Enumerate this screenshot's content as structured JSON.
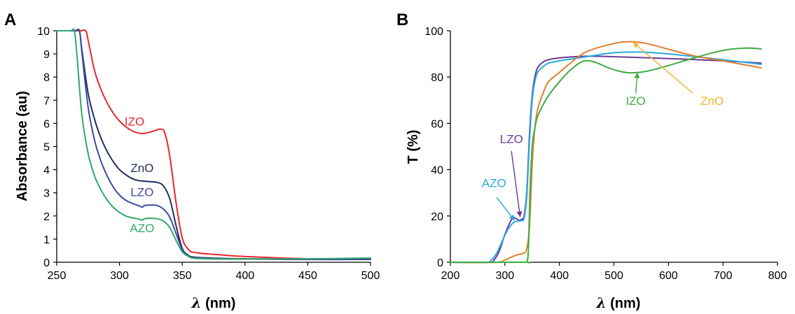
{
  "chart_data": [
    {
      "panel": "A",
      "type": "line",
      "title": "",
      "xlabel_symbol": "λ",
      "xlabel_unit": " (nm)",
      "ylabel": "Absorbance (au)",
      "xlim": [
        250,
        500
      ],
      "ylim": [
        0,
        10
      ],
      "xticks": [
        250,
        300,
        350,
        400,
        450,
        500
      ],
      "yticks": [
        0,
        1,
        2,
        3,
        4,
        5,
        6,
        7,
        8,
        9,
        10
      ],
      "grid": false,
      "legend": "none",
      "series": [
        {
          "name": "IZO",
          "color": "#e8262c",
          "x": [
            250,
            268,
            273,
            275,
            280,
            285,
            290,
            295,
            300,
            305,
            310,
            315,
            320,
            325,
            330,
            333,
            336,
            340,
            345,
            350,
            355,
            360,
            380,
            400,
            450,
            500
          ],
          "y": [
            10,
            10,
            10,
            9.6,
            8.3,
            7.5,
            6.9,
            6.45,
            6.1,
            5.85,
            5.68,
            5.58,
            5.57,
            5.63,
            5.72,
            5.75,
            5.6,
            4.6,
            2.6,
            1.05,
            0.55,
            0.42,
            0.32,
            0.25,
            0.15,
            0.12
          ]
        },
        {
          "name": "ZnO",
          "color": "#1f2d5a",
          "x": [
            250,
            264,
            268,
            270,
            275,
            280,
            285,
            290,
            295,
            300,
            305,
            310,
            315,
            320,
            325,
            330,
            335,
            340,
            345,
            350,
            355,
            360,
            380,
            400,
            450,
            500
          ],
          "y": [
            10,
            10,
            10,
            9.2,
            7.3,
            6.2,
            5.4,
            4.8,
            4.35,
            4.0,
            3.78,
            3.62,
            3.53,
            3.5,
            3.48,
            3.45,
            3.3,
            2.75,
            1.6,
            0.6,
            0.3,
            0.22,
            0.17,
            0.15,
            0.12,
            0.12
          ]
        },
        {
          "name": "LZO",
          "color": "#3b4aa0",
          "x": [
            250,
            264,
            268,
            270,
            275,
            280,
            285,
            290,
            295,
            300,
            305,
            310,
            315,
            318,
            320,
            325,
            330,
            335,
            340,
            345,
            350,
            355,
            360,
            380,
            400,
            450,
            500
          ],
          "y": [
            10,
            10,
            10,
            9.1,
            6.7,
            5.3,
            4.4,
            3.75,
            3.25,
            2.9,
            2.68,
            2.55,
            2.45,
            2.38,
            2.45,
            2.47,
            2.45,
            2.3,
            1.95,
            1.25,
            0.55,
            0.28,
            0.2,
            0.15,
            0.14,
            0.12,
            0.12
          ]
        },
        {
          "name": "AZO",
          "color": "#2fa86a",
          "x": [
            250,
            261,
            264,
            266,
            270,
            275,
            280,
            285,
            290,
            295,
            300,
            305,
            310,
            315,
            318,
            320,
            325,
            330,
            335,
            340,
            345,
            350,
            355,
            360,
            380,
            400,
            450,
            500
          ],
          "y": [
            10,
            10,
            10,
            9.0,
            6.4,
            4.7,
            3.75,
            3.15,
            2.7,
            2.38,
            2.15,
            2.0,
            1.92,
            1.87,
            1.82,
            1.88,
            1.9,
            1.88,
            1.78,
            1.5,
            0.95,
            0.45,
            0.25,
            0.17,
            0.14,
            0.14,
            0.15,
            0.18
          ]
        }
      ],
      "annotations": [
        {
          "text": "IZO",
          "color": "#e8262c",
          "x": 312,
          "y": 5.9
        },
        {
          "text": "ZnO",
          "color": "#1f2d5a",
          "x": 318,
          "y": 3.9
        },
        {
          "text": "LZO",
          "color": "#3b4aa0",
          "x": 318,
          "y": 2.85
        },
        {
          "text": "AZO",
          "color": "#2fa86a",
          "x": 318,
          "y": 1.3
        }
      ]
    },
    {
      "panel": "B",
      "type": "line",
      "title": "",
      "xlabel_symbol": "λ",
      "xlabel_unit": " (nm)",
      "ylabel": "T (%)",
      "xlim": [
        200,
        800
      ],
      "ylim": [
        0,
        100
      ],
      "xticks": [
        200,
        300,
        400,
        500,
        600,
        700,
        800
      ],
      "yticks": [
        0,
        20,
        40,
        60,
        80,
        100
      ],
      "grid": false,
      "legend": "none",
      "series": [
        {
          "name": "LZO",
          "color": "#6b3a94",
          "x": [
            200,
            270,
            280,
            290,
            300,
            310,
            315,
            320,
            325,
            330,
            335,
            340,
            345,
            350,
            355,
            360,
            370,
            380,
            400,
            450,
            500,
            600,
            700,
            770
          ],
          "y": [
            0,
            0,
            1,
            5,
            12,
            17.5,
            19.2,
            19,
            18.2,
            18.5,
            20,
            30,
            55,
            72,
            80,
            84,
            86.5,
            87.5,
            88.3,
            89,
            88.8,
            88,
            87,
            86
          ]
        },
        {
          "name": "AZO",
          "color": "#29a9e0",
          "x": [
            200,
            265,
            275,
            285,
            295,
            305,
            315,
            320,
            325,
            330,
            335,
            340,
            345,
            350,
            355,
            360,
            370,
            380,
            400,
            450,
            500,
            550,
            600,
            700,
            770
          ],
          "y": [
            0,
            0,
            1,
            4,
            9,
            14,
            17,
            17.5,
            17.8,
            18,
            19,
            28,
            52,
            70,
            78,
            82,
            84.5,
            86,
            87,
            88.8,
            90.5,
            90.8,
            90,
            87.5,
            85.5
          ]
        },
        {
          "name": "ZnO",
          "color": "#e07f2c",
          "x": [
            200,
            285,
            300,
            320,
            335,
            340,
            345,
            350,
            355,
            360,
            370,
            380,
            400,
            420,
            450,
            500,
            530,
            560,
            600,
            650,
            700,
            770
          ],
          "y": [
            0,
            0,
            1,
            3,
            4,
            6,
            15,
            42,
            58,
            66,
            73,
            78,
            82,
            86,
            91,
            94.5,
            95.3,
            94.5,
            92,
            89,
            87,
            84
          ]
        },
        {
          "name": "IZO",
          "color": "#3dad3e",
          "x": [
            200,
            335,
            340,
            343,
            346,
            350,
            355,
            360,
            370,
            380,
            400,
            420,
            440,
            455,
            470,
            490,
            510,
            530,
            560,
            600,
            650,
            700,
            740,
            770
          ],
          "y": [
            0,
            0,
            0.3,
            5,
            30,
            50,
            58,
            63,
            68,
            72,
            78,
            83,
            86.5,
            87,
            86,
            84,
            82.5,
            81.8,
            82.5,
            85,
            88.5,
            91.5,
            92.5,
            92.2
          ]
        }
      ],
      "annotations": [
        {
          "text": "LZO",
          "color": "#6b3a94",
          "x": 312,
          "y": 51.5
        },
        {
          "text": "AZO",
          "color": "#29a9e0",
          "x": 280,
          "y": 32.5
        },
        {
          "text": "IZO",
          "color": "#3dad3e",
          "x": 540,
          "y": 68
        },
        {
          "text": "ZnO",
          "color": "#f0b32a",
          "x": 680,
          "y": 68
        }
      ],
      "arrows": [
        {
          "color": "#6b3a94",
          "from": [
            312,
            48
          ],
          "to": [
            328,
            19.5
          ]
        },
        {
          "color": "#29a9e0",
          "from": [
            285,
            28
          ],
          "to": [
            318,
            18
          ]
        },
        {
          "color": "#3dad3e",
          "from": [
            540,
            73
          ],
          "to": [
            543,
            82
          ]
        },
        {
          "color": "#f0b32a",
          "from": [
            645,
            73
          ],
          "to": [
            535,
            95
          ]
        }
      ]
    }
  ]
}
